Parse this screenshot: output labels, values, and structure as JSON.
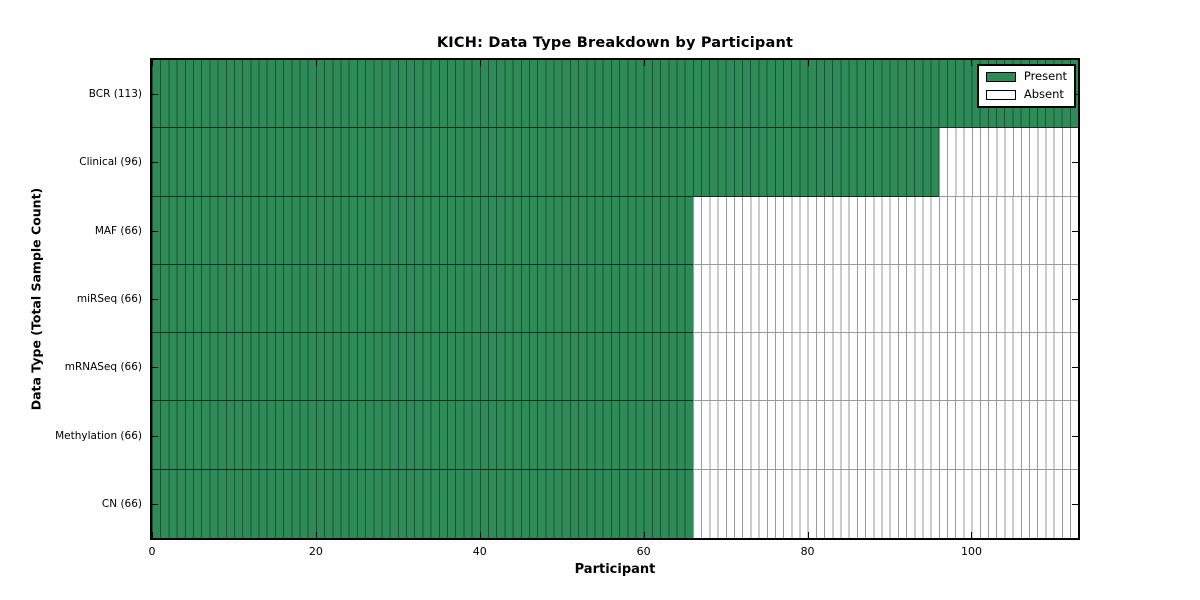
{
  "chart_data": {
    "type": "heatmap",
    "title": "KICH: Data Type Breakdown by Participant",
    "xlabel": "Participant",
    "ylabel": "Data Type (Total Sample Count)",
    "x_range": [
      0,
      113
    ],
    "x_ticks": [
      0,
      20,
      40,
      60,
      80,
      100
    ],
    "total_participants": 113,
    "rows": [
      {
        "label": "BCR (113)",
        "data_type": "BCR",
        "sample_count": 113
      },
      {
        "label": "Clinical (96)",
        "data_type": "Clinical",
        "sample_count": 96
      },
      {
        "label": "MAF (66)",
        "data_type": "MAF",
        "sample_count": 66
      },
      {
        "label": "miRSeq (66)",
        "data_type": "miRSeq",
        "sample_count": 66
      },
      {
        "label": "mRNASeq (66)",
        "data_type": "mRNASeq",
        "sample_count": 66
      },
      {
        "label": "Methylation (66)",
        "data_type": "Methylation",
        "sample_count": 66
      },
      {
        "label": "CN (66)",
        "data_type": "CN",
        "sample_count": 66
      }
    ],
    "legend": [
      {
        "label": "Present",
        "color": "#2E8B57"
      },
      {
        "label": "Absent",
        "color": "#FFFFFF"
      }
    ],
    "colors": {
      "present": "#2E8B57",
      "absent": "#FFFFFF",
      "grid_present": "rgba(0,0,0,0.40)",
      "grid_absent": "#9a9a9a",
      "spine": "#000000"
    },
    "legend_position": "upper right",
    "grid": "per-participant vertical cell edges"
  }
}
